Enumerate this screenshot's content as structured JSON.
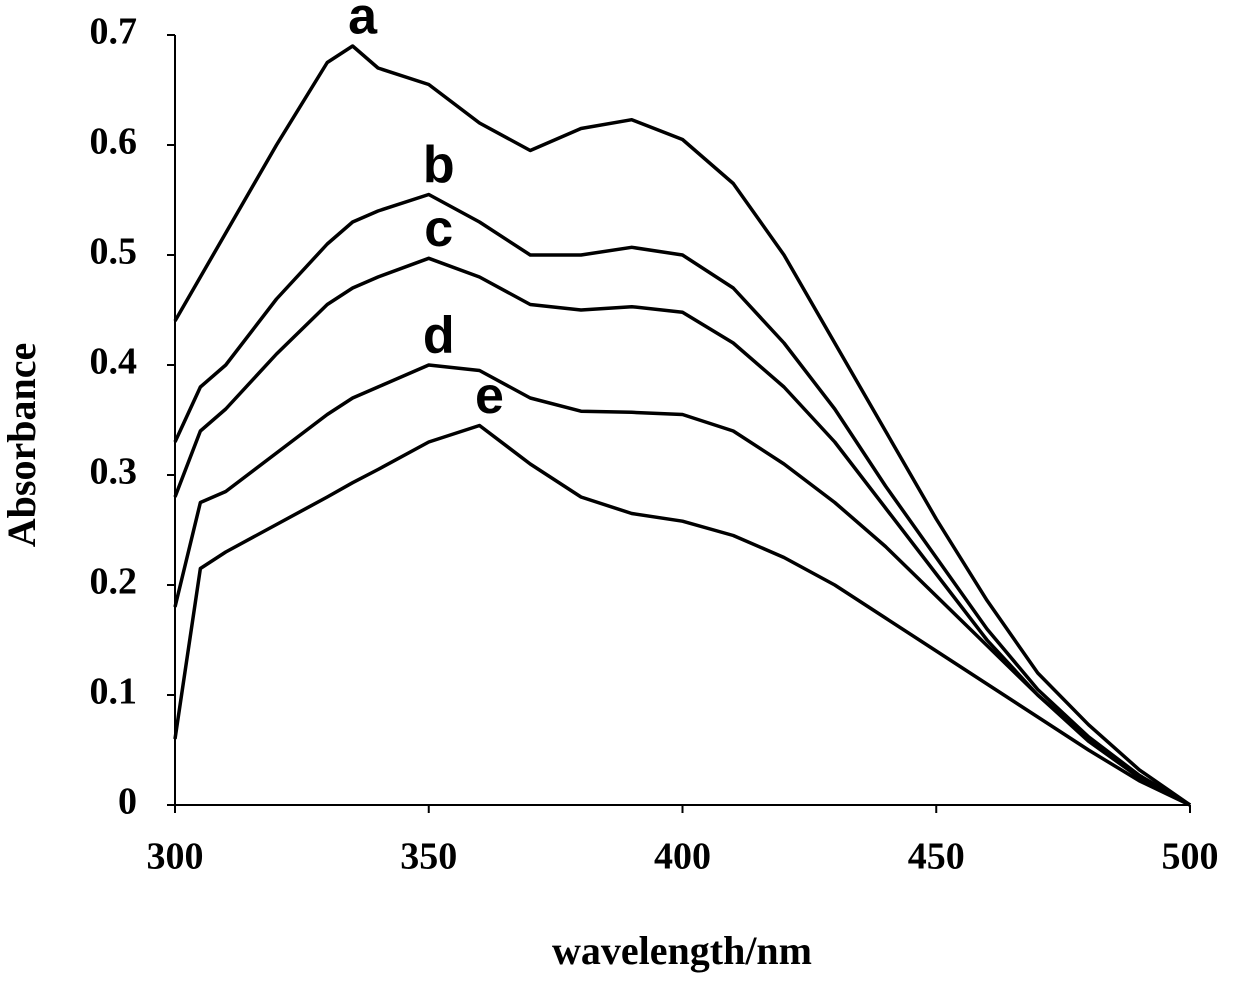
{
  "chart_data": {
    "type": "line",
    "xlabel": "wavelength/nm",
    "ylabel": "Absorbance",
    "x": [
      300,
      305,
      310,
      320,
      330,
      335,
      340,
      350,
      360,
      370,
      380,
      390,
      400,
      410,
      420,
      430,
      440,
      450,
      460,
      470,
      480,
      490,
      500
    ],
    "series": [
      {
        "name": "a",
        "color": "#000000",
        "values": [
          0.44,
          0.48,
          0.52,
          0.6,
          0.675,
          0.69,
          0.67,
          0.655,
          0.62,
          0.595,
          0.615,
          0.623,
          0.605,
          0.565,
          0.5,
          0.42,
          0.34,
          0.26,
          0.186,
          0.12,
          0.073,
          0.032,
          0
        ]
      },
      {
        "name": "b",
        "color": "#000000",
        "values": [
          0.33,
          0.38,
          0.4,
          0.46,
          0.51,
          0.53,
          0.54,
          0.555,
          0.53,
          0.5,
          0.5,
          0.507,
          0.5,
          0.47,
          0.42,
          0.36,
          0.29,
          0.225,
          0.16,
          0.105,
          0.062,
          0.027,
          0
        ]
      },
      {
        "name": "c",
        "color": "#000000",
        "values": [
          0.28,
          0.34,
          0.36,
          0.41,
          0.455,
          0.47,
          0.48,
          0.497,
          0.48,
          0.455,
          0.45,
          0.453,
          0.448,
          0.42,
          0.38,
          0.33,
          0.27,
          0.21,
          0.15,
          0.1,
          0.058,
          0.025,
          0
        ]
      },
      {
        "name": "d",
        "color": "#000000",
        "values": [
          0.18,
          0.275,
          0.285,
          0.32,
          0.355,
          0.37,
          0.38,
          0.4,
          0.395,
          0.37,
          0.358,
          0.357,
          0.355,
          0.34,
          0.31,
          0.275,
          0.235,
          0.19,
          0.145,
          0.1,
          0.06,
          0.025,
          0
        ]
      },
      {
        "name": "e",
        "color": "#000000",
        "values": [
          0.06,
          0.215,
          0.23,
          0.255,
          0.28,
          0.293,
          0.305,
          0.33,
          0.345,
          0.31,
          0.28,
          0.265,
          0.258,
          0.245,
          0.225,
          0.2,
          0.17,
          0.14,
          0.11,
          0.08,
          0.05,
          0.022,
          0
        ]
      }
    ],
    "xlim": [
      300,
      500
    ],
    "xticks": [
      300,
      350,
      400,
      450,
      500
    ],
    "ylim": [
      0,
      0.7
    ],
    "yticks": [
      0,
      0.1,
      0.2,
      0.3,
      0.4,
      0.5,
      0.6,
      0.7
    ]
  }
}
